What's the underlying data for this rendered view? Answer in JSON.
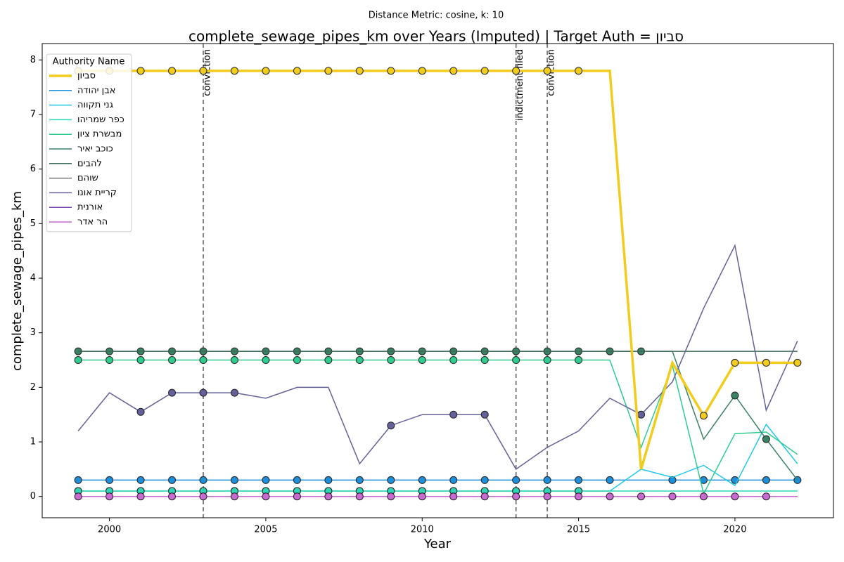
{
  "chart_data": {
    "type": "line",
    "title": "complete_sewage_pipes_km over Years (Imputed) | Target Auth = סביון",
    "subtitle": "Distance Metric: cosine, k: 10",
    "x_label": "Year",
    "y_label": "complete_sewage_pipes_km",
    "legend_title": "Authority Name",
    "legend": "upper left",
    "x": [
      1999,
      2000,
      2001,
      2002,
      2003,
      2004,
      2005,
      2006,
      2007,
      2008,
      2009,
      2010,
      2011,
      2012,
      2013,
      2014,
      2015,
      2016,
      2017,
      2018,
      2019,
      2020,
      2021,
      2022
    ],
    "xlim": [
      1997.85,
      2023.15
    ],
    "xticks": [
      2000,
      2005,
      2010,
      2015,
      2020
    ],
    "ylim": [
      -0.39,
      8.3
    ],
    "yticks": [
      0,
      1,
      2,
      3,
      4,
      5,
      6,
      7,
      8
    ],
    "events": [
      {
        "x": 2003,
        "label": "conviction"
      },
      {
        "x": 2013,
        "label": "indictment filed"
      },
      {
        "x": 2014,
        "label": "conviction"
      }
    ],
    "series": [
      {
        "name": "סביון",
        "color": "#f2cc1d",
        "width": 3.5,
        "values": [
          7.8,
          7.8,
          7.8,
          7.8,
          7.8,
          7.8,
          7.8,
          7.8,
          7.8,
          7.8,
          7.8,
          7.8,
          7.8,
          7.8,
          7.8,
          7.8,
          7.8,
          7.8,
          0.5,
          2.45,
          1.48,
          2.45,
          2.45,
          2.45
        ],
        "markers": [
          true,
          true,
          true,
          true,
          true,
          true,
          true,
          true,
          true,
          true,
          true,
          true,
          true,
          true,
          true,
          true,
          true,
          false,
          false,
          false,
          true,
          true,
          true,
          true
        ]
      },
      {
        "name": "אבן יהודה",
        "color": "#1f8ed8",
        "width": 1.5,
        "values": [
          0.3,
          0.3,
          0.3,
          0.3,
          0.3,
          0.3,
          0.3,
          0.3,
          0.3,
          0.3,
          0.3,
          0.3,
          0.3,
          0.3,
          0.3,
          0.3,
          0.3,
          0.3,
          0.3,
          0.3,
          0.3,
          0.3,
          0.3,
          0.3
        ],
        "markers": [
          true,
          true,
          true,
          true,
          true,
          true,
          true,
          true,
          true,
          true,
          true,
          true,
          true,
          true,
          true,
          true,
          true,
          true,
          false,
          true,
          true,
          true,
          true,
          true
        ]
      },
      {
        "name": "גני תקווה",
        "color": "#22c8e8",
        "width": 1.5,
        "values": [
          0.1,
          0.1,
          0.1,
          0.1,
          0.1,
          0.1,
          0.1,
          0.1,
          0.1,
          0.1,
          0.1,
          0.1,
          0.1,
          0.1,
          0.1,
          0.1,
          0.1,
          0.1,
          0.5,
          0.35,
          0.57,
          0.2,
          1.32,
          0.6
        ],
        "markers": [
          true,
          true,
          true,
          true,
          true,
          true,
          true,
          true,
          true,
          true,
          true,
          true,
          true,
          true,
          true,
          true,
          true,
          false,
          false,
          false,
          false,
          false,
          false,
          false
        ]
      },
      {
        "name": "כפר שמריהו",
        "color": "#2ad6b6",
        "width": 1.5,
        "values": [
          0.1,
          0.1,
          0.1,
          0.1,
          0.1,
          0.1,
          0.1,
          0.1,
          0.1,
          0.1,
          0.1,
          0.1,
          0.1,
          0.1,
          0.1,
          0.1,
          0.1,
          0.1,
          0.1,
          0.1,
          0.1,
          0.1,
          0.1,
          0.1
        ],
        "markers": [
          true,
          true,
          true,
          true,
          true,
          true,
          true,
          true,
          true,
          true,
          true,
          true,
          true,
          true,
          true,
          true,
          true,
          false,
          false,
          false,
          false,
          false,
          false,
          false
        ]
      },
      {
        "name": "מבשרת ציון",
        "color": "#2ecc8e",
        "width": 1.5,
        "values": [
          2.5,
          2.5,
          2.5,
          2.5,
          2.5,
          2.5,
          2.5,
          2.5,
          2.5,
          2.5,
          2.5,
          2.5,
          2.5,
          2.5,
          2.5,
          2.5,
          2.5,
          2.5,
          0.9,
          2.4,
          0.05,
          1.15,
          1.18,
          0.77
        ],
        "markers": [
          true,
          true,
          true,
          true,
          true,
          true,
          true,
          true,
          true,
          true,
          true,
          true,
          true,
          true,
          true,
          true,
          true,
          false,
          false,
          false,
          false,
          false,
          false,
          false
        ]
      },
      {
        "name": "כוכב יאיר",
        "color": "#3a8264",
        "width": 1.5,
        "values": [
          2.66,
          2.66,
          2.66,
          2.66,
          2.66,
          2.66,
          2.66,
          2.66,
          2.66,
          2.66,
          2.66,
          2.66,
          2.66,
          2.66,
          2.66,
          2.66,
          2.66,
          2.66,
          2.66,
          2.66,
          1.05,
          1.85,
          1.05,
          0.3
        ],
        "markers": [
          true,
          true,
          true,
          true,
          true,
          true,
          true,
          true,
          true,
          true,
          true,
          true,
          true,
          true,
          true,
          true,
          true,
          true,
          true,
          false,
          false,
          true,
          true,
          false
        ]
      },
      {
        "name": "להבים",
        "color": "#3c6a56",
        "width": 1.5,
        "values": [
          2.66,
          2.66,
          2.66,
          2.66,
          2.66,
          2.66,
          2.66,
          2.66,
          2.66,
          2.66,
          2.66,
          2.66,
          2.66,
          2.66,
          2.66,
          2.66,
          2.66,
          2.66,
          2.66,
          2.66,
          2.66,
          2.66,
          2.66,
          2.66
        ],
        "markers": [
          false,
          false,
          false,
          false,
          false,
          false,
          false,
          false,
          false,
          false,
          false,
          false,
          false,
          false,
          false,
          false,
          false,
          false,
          false,
          false,
          false,
          false,
          false,
          false
        ]
      },
      {
        "name": "שוהם",
        "color": "#777777",
        "width": 1.5,
        "values": [
          0,
          0,
          0,
          0,
          0,
          0,
          0,
          0,
          0,
          0,
          0,
          0,
          0,
          0,
          0,
          0,
          0,
          0,
          0,
          0,
          0,
          0,
          0,
          0
        ],
        "markers": [
          false,
          false,
          false,
          false,
          false,
          false,
          false,
          false,
          false,
          false,
          false,
          false,
          false,
          false,
          false,
          false,
          false,
          false,
          false,
          false,
          false,
          false,
          false,
          false
        ]
      },
      {
        "name": "קריית אונו",
        "color": "#64619a",
        "width": 1.5,
        "values": [
          1.2,
          1.9,
          1.55,
          1.9,
          1.9,
          1.9,
          1.8,
          2.0,
          2.0,
          0.6,
          1.3,
          1.5,
          1.5,
          1.5,
          0.5,
          0.9,
          1.2,
          1.8,
          1.5,
          2.1,
          3.45,
          4.6,
          1.58,
          2.85
        ],
        "markers": [
          false,
          false,
          true,
          true,
          true,
          true,
          false,
          false,
          false,
          false,
          true,
          false,
          true,
          true,
          false,
          false,
          false,
          false,
          true,
          false,
          false,
          false,
          false,
          false
        ]
      },
      {
        "name": "אורנית",
        "color": "#7240b0",
        "width": 1.5,
        "values": [
          0,
          0,
          0,
          0,
          0,
          0,
          0,
          0,
          0,
          0,
          0,
          0,
          0,
          0,
          0,
          0,
          0,
          0,
          0,
          0,
          0,
          0,
          0,
          0
        ],
        "markers": [
          false,
          false,
          false,
          false,
          false,
          false,
          false,
          false,
          false,
          false,
          false,
          false,
          false,
          false,
          false,
          false,
          false,
          false,
          false,
          false,
          false,
          false,
          false,
          false
        ]
      },
      {
        "name": "הר אדר",
        "color": "#c96ad2",
        "width": 1.5,
        "values": [
          0,
          0,
          0,
          0,
          0,
          0,
          0,
          0,
          0,
          0,
          0,
          0,
          0,
          0,
          0,
          0,
          0,
          0,
          0,
          0,
          0,
          0,
          0,
          0
        ],
        "markers": [
          true,
          true,
          true,
          true,
          true,
          true,
          true,
          true,
          true,
          true,
          true,
          true,
          true,
          true,
          true,
          true,
          true,
          true,
          true,
          true,
          true,
          true,
          true,
          false
        ]
      }
    ]
  }
}
